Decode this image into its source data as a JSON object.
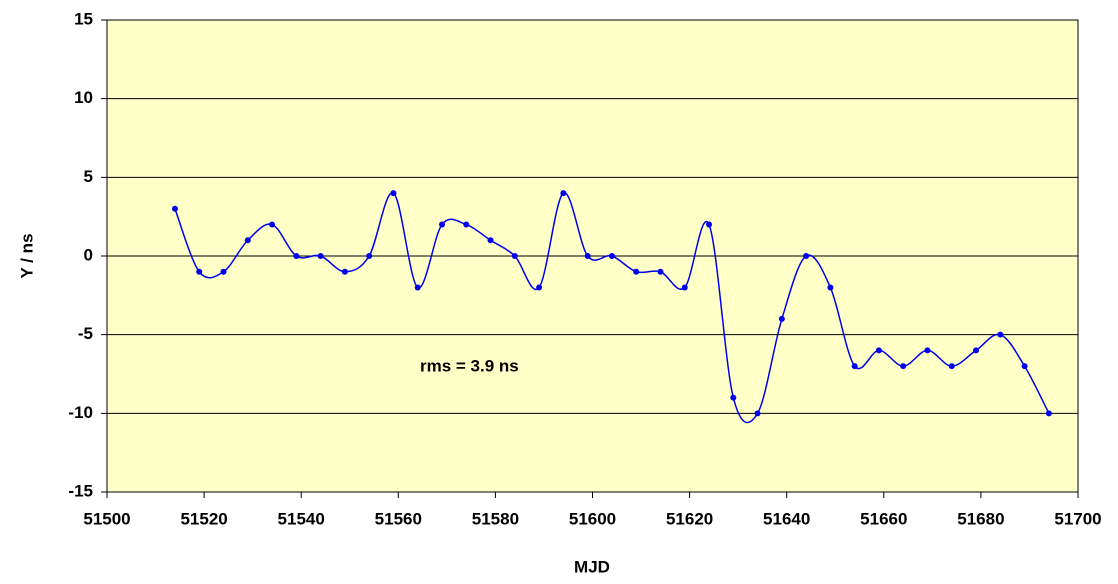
{
  "chart_data": {
    "type": "line",
    "x_label": "MJD",
    "y_label": "Y / ns",
    "annotation": "rms = 3.9 ns",
    "x": [
      51514,
      51519,
      51524,
      51529,
      51534,
      51539,
      51544,
      51549,
      51554,
      51559,
      51564,
      51569,
      51574,
      51579,
      51584,
      51589,
      51594,
      51599,
      51604,
      51609,
      51614,
      51619,
      51624,
      51629,
      51634,
      51639,
      51644,
      51649,
      51654,
      51659,
      51664,
      51669,
      51674,
      51679,
      51684,
      51689,
      51694
    ],
    "series": [
      {
        "name": "Y",
        "color": "#0000ee",
        "values": [
          3,
          -1,
          -1,
          1,
          2,
          0,
          0,
          -1,
          0,
          4,
          -2,
          2,
          2,
          1,
          0,
          -2,
          4,
          0,
          0,
          -1,
          -1,
          -2,
          2,
          -9,
          -10,
          -4,
          0,
          -2,
          -7,
          -6,
          -7,
          -6,
          -7,
          -6,
          -5,
          -7,
          -10
        ]
      }
    ],
    "xlim": [
      51500,
      51700
    ],
    "xticks": [
      51500,
      51520,
      51540,
      51560,
      51580,
      51600,
      51620,
      51640,
      51660,
      51680,
      51700
    ],
    "ylim": [
      -15,
      15
    ],
    "yticks": [
      -15,
      -10,
      -5,
      0,
      5,
      10,
      15
    ],
    "grid": true,
    "smooth": true,
    "plot_background": "#ffffc8"
  }
}
